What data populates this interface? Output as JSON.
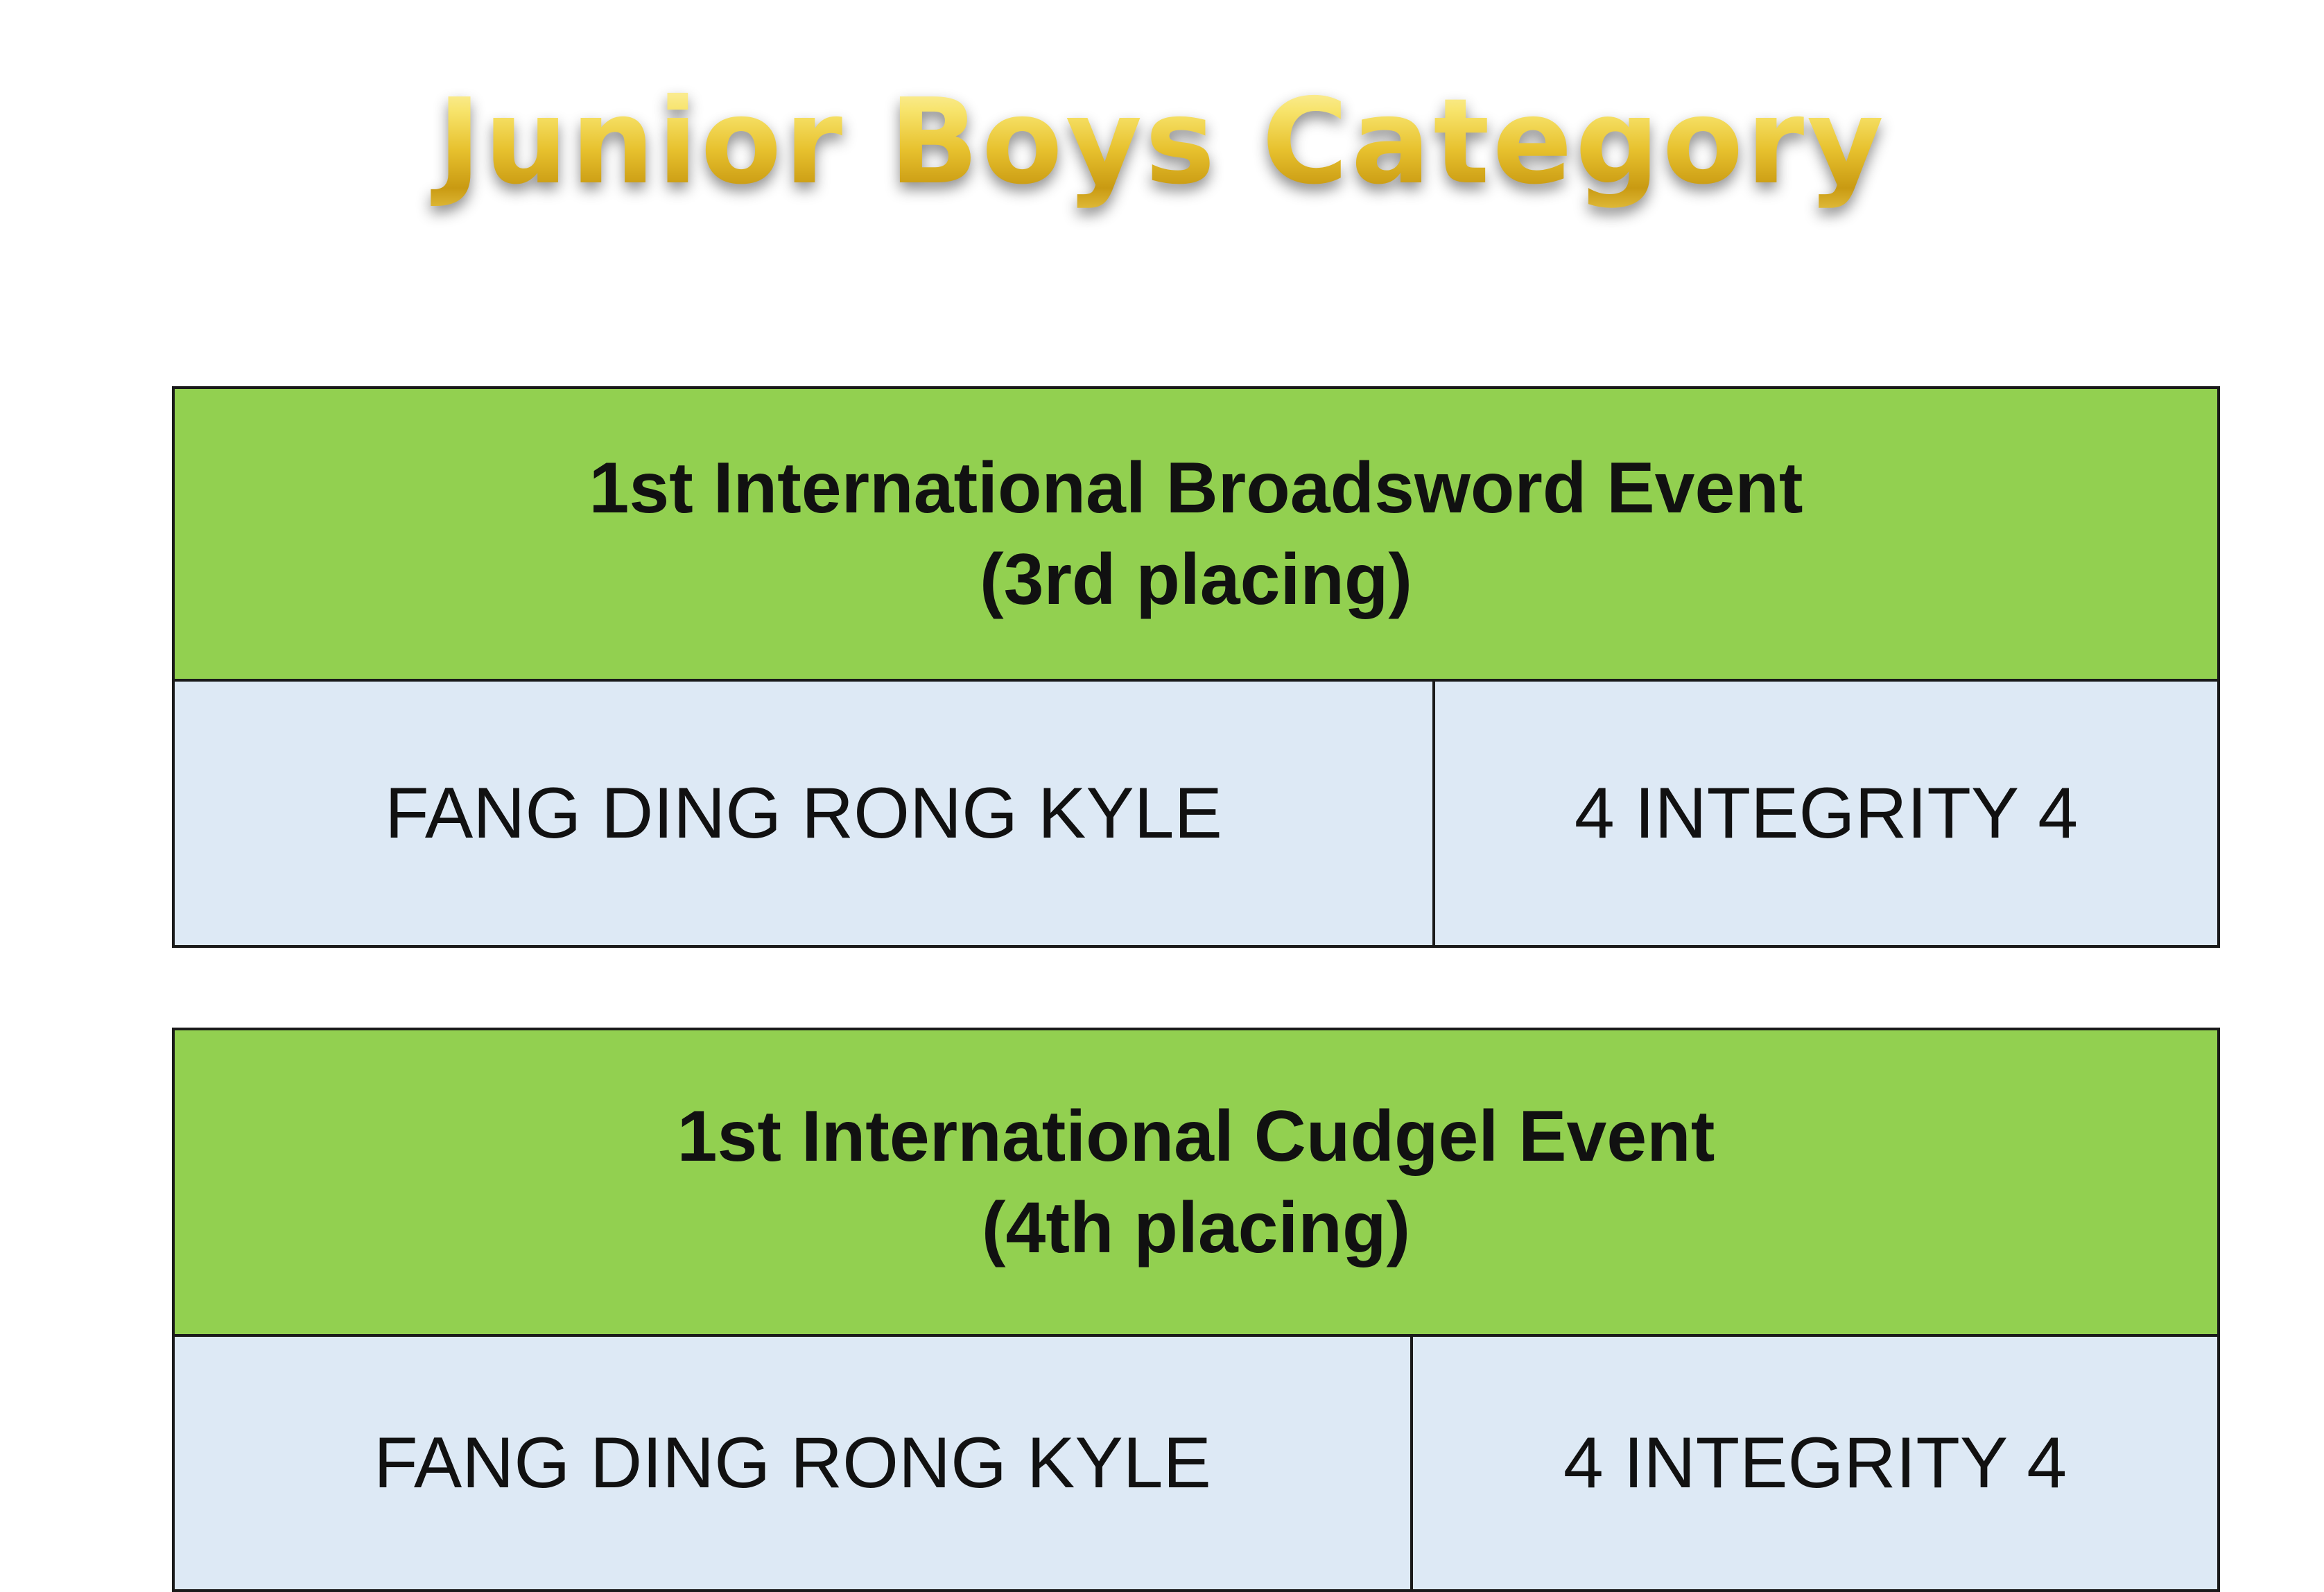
{
  "title": "Junior Boys Category",
  "events": [
    {
      "event_name": "1st International Broadsword Event",
      "placing": "(3rd placing)",
      "participant": "FANG DING RONG KYLE",
      "class": "4 INTEGRITY 4"
    },
    {
      "event_name": "1st International Cudgel Event",
      "placing": "(4th placing)",
      "participant": "FANG DING RONG KYLE",
      "class": "4 INTEGRITY 4"
    }
  ],
  "colors": {
    "header_bg": "#92d050",
    "cell_bg": "#dde9f5",
    "title_gold": "#e7c12e"
  }
}
